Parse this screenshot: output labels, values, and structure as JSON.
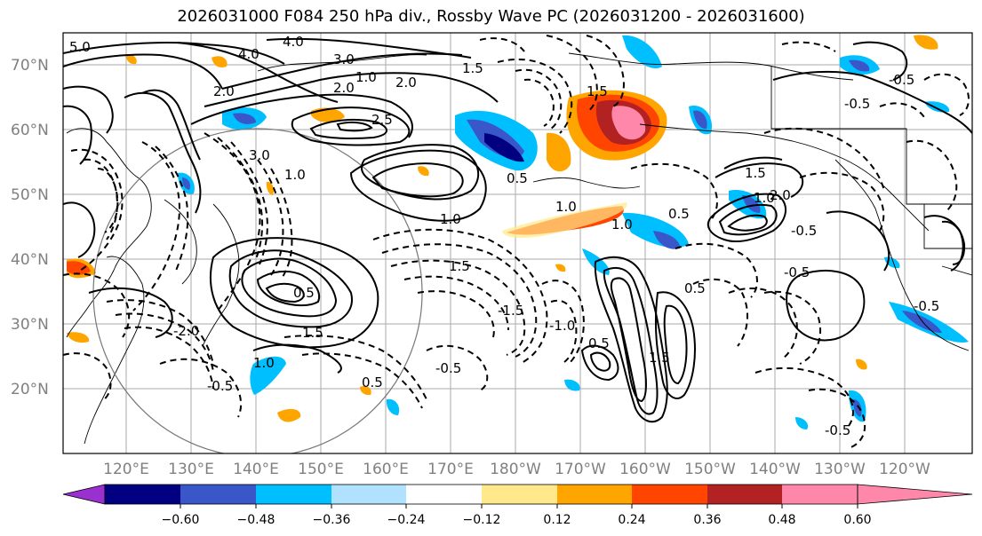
{
  "title": "2026031000 F084 250 hPa div., Rossby Wave PC (2026031200 - 2026031600)",
  "map": {
    "lat_labels": [
      "70°N",
      "60°N",
      "50°N",
      "40°N",
      "30°N",
      "20°N"
    ],
    "lon_labels": [
      "120°E",
      "130°E",
      "140°E",
      "150°E",
      "160°E",
      "170°E",
      "180°W",
      "170°W",
      "160°W",
      "150°W",
      "140°W",
      "130°W",
      "120°W"
    ],
    "contour_labels": [
      "5.0",
      "4.0",
      "4.0",
      "3.0",
      "2.0",
      "2.0",
      "1.0",
      "1.5",
      "2.0",
      "2.5",
      "3.0",
      "1.0",
      "1.0",
      "1.5",
      "1.0",
      "0.5",
      "1.5",
      "1.0",
      "0.5",
      "-0.5",
      "-0.5",
      "-0.5",
      "-0.5",
      "1.5",
      "0.5",
      "1.0",
      "-0.5",
      "1.5",
      "1.0",
      "2.0",
      "1.5",
      "0.5",
      "-0.5",
      "0.5",
      "-0.5",
      "-1.0",
      "-1.5",
      "-2.0",
      "0.5",
      "-0.5"
    ]
  },
  "colorbar": {
    "ticks": [
      "−0.60",
      "−0.48",
      "−0.36",
      "−0.24",
      "−0.12",
      "0.12",
      "0.24",
      "0.36",
      "0.48",
      "0.60"
    ],
    "colors": [
      "#9b30d0",
      "#000080",
      "#3a57c9",
      "#00bfff",
      "#b0e2ff",
      "#ffffff",
      "#ffe98a",
      "#ffa500",
      "#ff4500",
      "#b22222",
      "#ff88aa",
      "#ff88aa"
    ]
  }
}
